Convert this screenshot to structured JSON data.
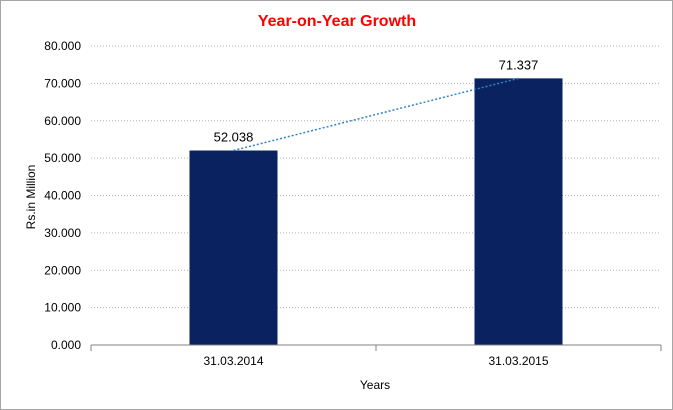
{
  "chart_data": {
    "type": "bar",
    "title": "Year-on-Year Growth",
    "xlabel": "Years",
    "ylabel": "Rs.in Million",
    "categories": [
      "31.03.2014",
      "31.03.2015"
    ],
    "values": [
      52.038,
      71.337
    ],
    "value_labels": [
      "52.038",
      "71.337"
    ],
    "ylim": [
      0,
      80
    ],
    "yticks": [
      0,
      10,
      20,
      30,
      40,
      50,
      60,
      70,
      80
    ],
    "ytick_labels": [
      "0.000",
      "10.000",
      "20.000",
      "30.000",
      "40.000",
      "50.000",
      "60.000",
      "70.000",
      "80.000"
    ],
    "grid": true,
    "grid_style": "dotted",
    "trendline": true,
    "legend": "none",
    "colors": {
      "bar": "#0b2260",
      "trendline": "#2e86c1",
      "title": "#ff0000",
      "grid": "#b0b0b0",
      "axis": "#808080"
    }
  }
}
